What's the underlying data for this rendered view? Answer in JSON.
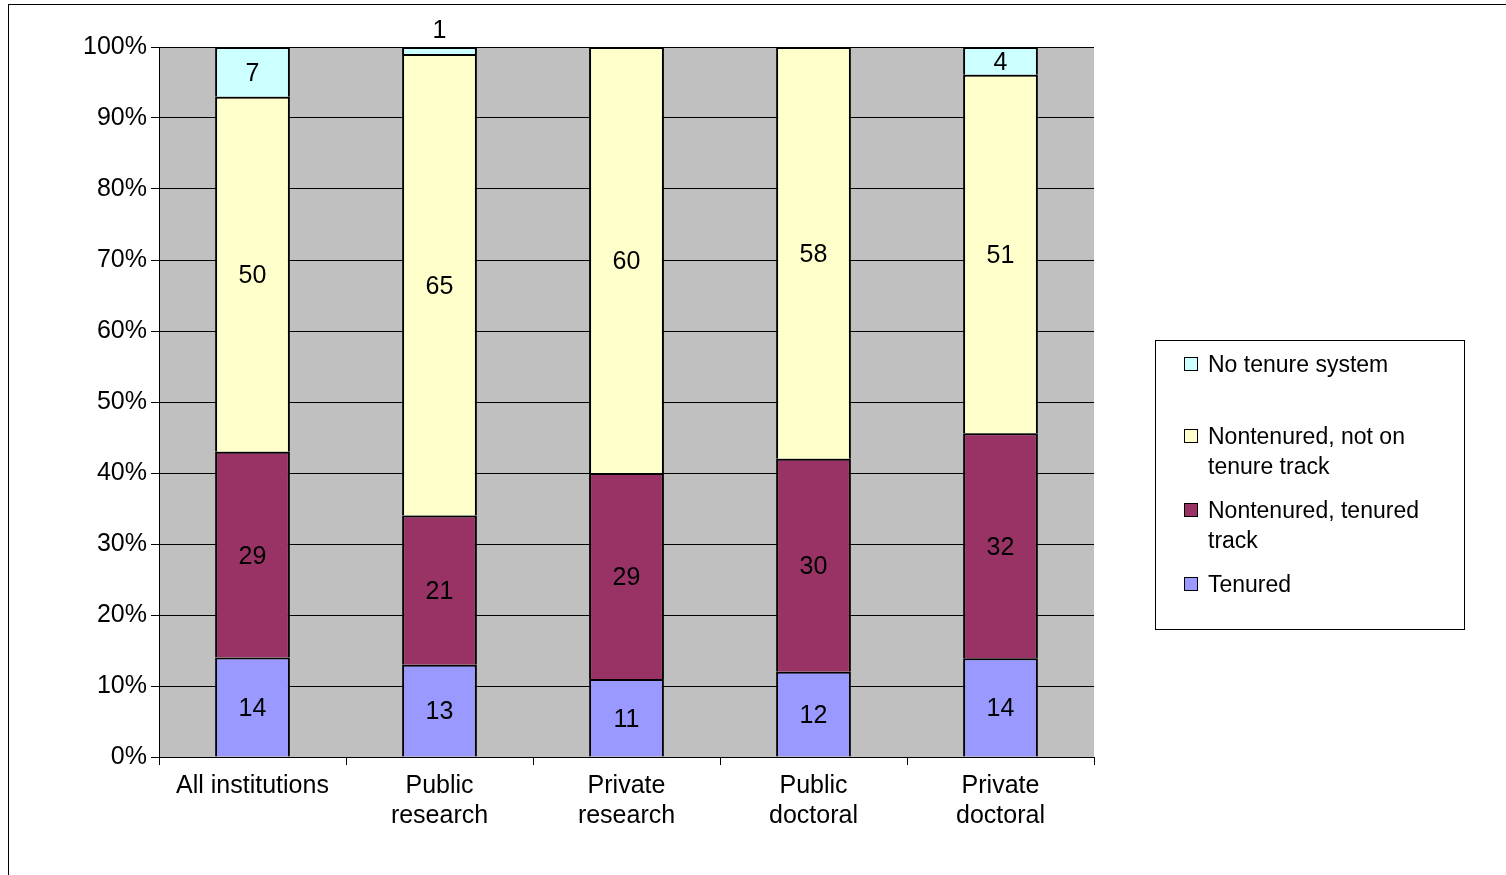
{
  "chart_data": {
    "type": "bar",
    "stacked": true,
    "categories": [
      "All institutions",
      "Public\nresearch",
      "Private\nresearch",
      "Public\ndoctoral",
      "Private\ndoctoral"
    ],
    "series": [
      {
        "name": "Tenured",
        "color": "#9999ff",
        "values": [
          14,
          13,
          11,
          12,
          13.9
        ],
        "value_labels": [
          "14",
          "13",
          "11",
          "12",
          "14"
        ]
      },
      {
        "name": "Nontenured, tenured track",
        "color": "#993366",
        "values": [
          29,
          21,
          29,
          30,
          31.7
        ],
        "value_labels": [
          "29",
          "21",
          "29",
          "30",
          "32"
        ]
      },
      {
        "name": "Nontenured, not on tenure track",
        "color": "#ffffcc",
        "values": [
          50,
          65,
          60,
          58,
          50.5
        ],
        "value_labels": [
          "50",
          "65",
          "60",
          "58",
          "51"
        ]
      },
      {
        "name": "No tenure system",
        "color": "#ccffff",
        "values": [
          7,
          1,
          0,
          0,
          3.9
        ],
        "value_labels": [
          "7",
          "1",
          null,
          null,
          "4"
        ]
      }
    ],
    "ylim": [
      0,
      100
    ],
    "yticks": [
      {
        "value": 0,
        "label": "0%"
      },
      {
        "value": 10,
        "label": "10%"
      },
      {
        "value": 20,
        "label": "20%"
      },
      {
        "value": 30,
        "label": "30%"
      },
      {
        "value": 40,
        "label": "40%"
      },
      {
        "value": 50,
        "label": "50%"
      },
      {
        "value": 60,
        "label": "60%"
      },
      {
        "value": 70,
        "label": "70%"
      },
      {
        "value": 80,
        "label": "80%"
      },
      {
        "value": 90,
        "label": "90%"
      },
      {
        "value": 100,
        "label": "100%"
      }
    ],
    "grid": "y",
    "legend": "right"
  }
}
